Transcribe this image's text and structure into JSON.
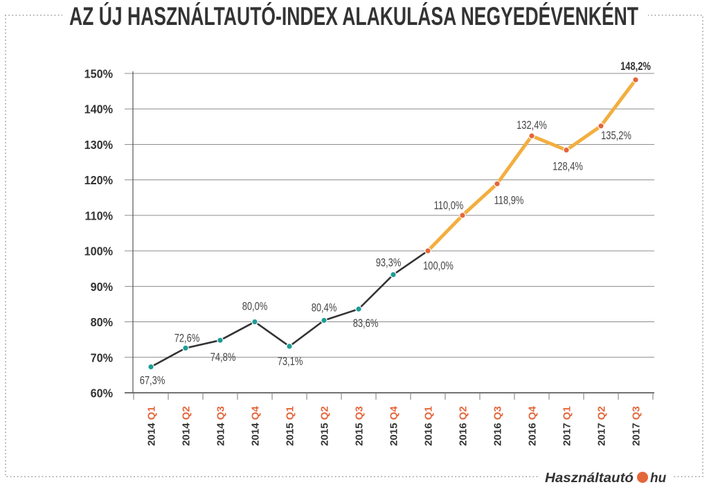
{
  "logo": {
    "name": "Használtautó",
    "tld": "hu",
    "dot_color": "#e4663b"
  },
  "chart_data": {
    "type": "line",
    "title": "AZ ÚJ HASZNÁLTAUTÓ-INDEX ALAKULÁSA NEGYEDÉVENKÉNT",
    "categories": [
      "2014 Q1",
      "2014 Q2",
      "2014 Q3",
      "2014 Q4",
      "2015 Q1",
      "2015 Q2",
      "2015 Q3",
      "2015 Q4",
      "2016 Q1",
      "2016 Q2",
      "2016 Q3",
      "2016 Q4",
      "2017 Q1",
      "2017 Q2",
      "2017 Q3"
    ],
    "values": [
      67.3,
      72.6,
      74.8,
      80.0,
      73.1,
      80.4,
      83.6,
      93.3,
      100.0,
      110.0,
      118.9,
      132.4,
      128.4,
      135.2,
      148.2
    ],
    "data_labels": [
      "67,3%",
      "72,6%",
      "74,8%",
      "80,0%",
      "73,1%",
      "80,4%",
      "83,6%",
      "93,3%",
      "100,0%",
      "110,0%",
      "118,9%",
      "132,4%",
      "128,4%",
      "135,2%",
      "148,2%"
    ],
    "ylim": [
      60,
      150
    ],
    "y_ticks": [
      60,
      70,
      80,
      90,
      100,
      110,
      120,
      130,
      140,
      150
    ],
    "y_tick_labels": [
      "60%",
      "70%",
      "80%",
      "90%",
      "100%",
      "110%",
      "120%",
      "130%",
      "140%",
      "150%"
    ],
    "grid": true,
    "highlight_from": "2016 Q1",
    "colors": {
      "line_early": "#333333",
      "point_early": "#1c9d95",
      "line_late": "#f3ae3f",
      "point_late": "#e4663b",
      "year_label": "#333333",
      "quarter_label": "#e4663b"
    }
  }
}
